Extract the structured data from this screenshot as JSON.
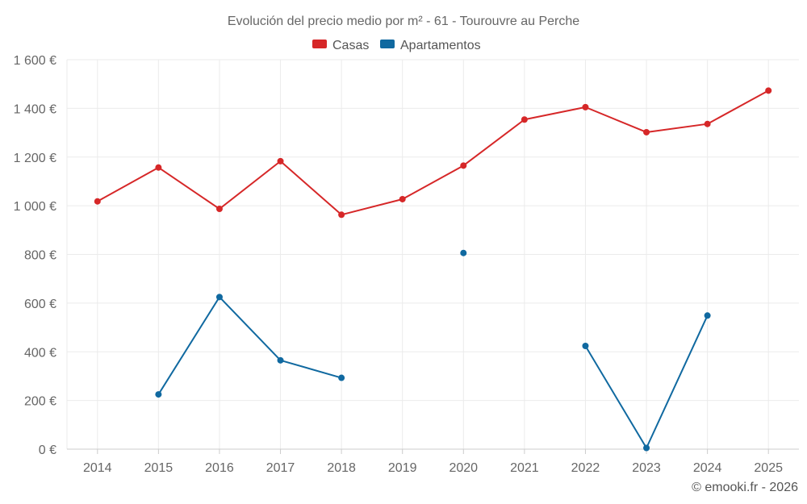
{
  "chart_data": {
    "type": "line",
    "title": "Evolución del precio medio por m² - 61 - Tourouvre au Perche",
    "categories": [
      "2014",
      "2015",
      "2016",
      "2017",
      "2018",
      "2019",
      "2020",
      "2021",
      "2022",
      "2023",
      "2024",
      "2025"
    ],
    "ylim": [
      0,
      1600
    ],
    "yticks": [
      0,
      200,
      400,
      600,
      800,
      1000,
      1200,
      1400,
      1600
    ],
    "ytick_labels": [
      "0 €",
      "200 €",
      "400 €",
      "600 €",
      "800 €",
      "1 000 €",
      "1 200 €",
      "1 400 €",
      "1 600 €"
    ],
    "xlabel": "",
    "ylabel": "",
    "grid": true,
    "legend_position": "top-center",
    "series": [
      {
        "name": "Casas",
        "color": "#d62728",
        "values": [
          1018,
          1157,
          987,
          1183,
          963,
          1027,
          1165,
          1354,
          1405,
          1302,
          1336,
          1473
        ]
      },
      {
        "name": "Apartamentos",
        "color": "#1069a0",
        "values": [
          null,
          225,
          625,
          365,
          293,
          null,
          806,
          null,
          424,
          5,
          549,
          null
        ]
      }
    ]
  },
  "credit": "© emooki.fr - 2026"
}
